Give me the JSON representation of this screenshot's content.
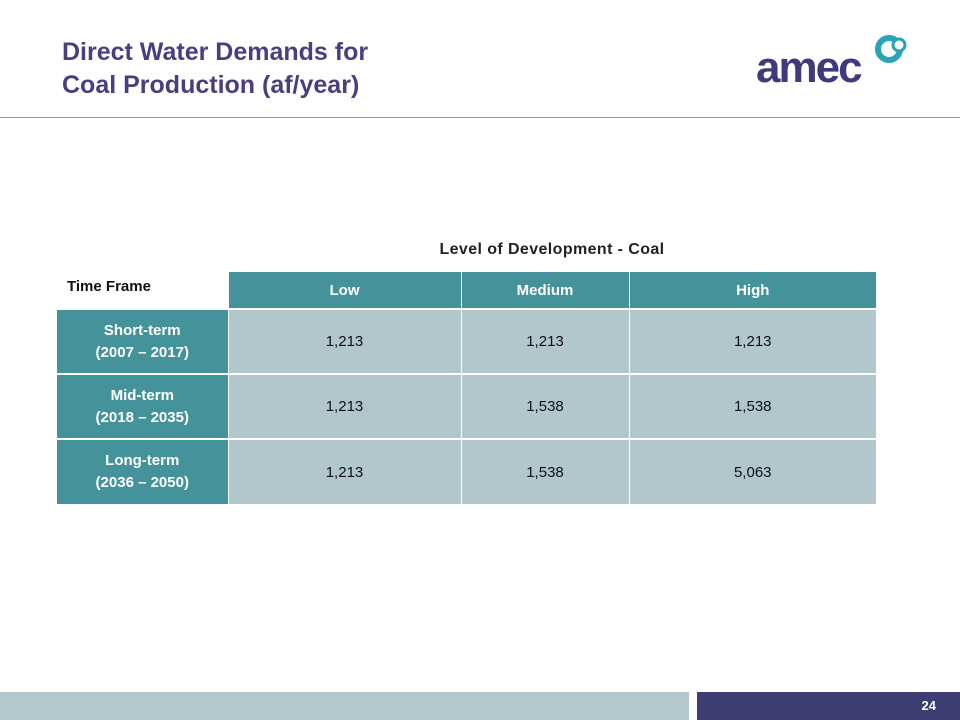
{
  "slide": {
    "title_line1": "Direct Water Demands for",
    "title_line2": "Coal Production (af/year)",
    "logo_text": "amec",
    "page_number": "24"
  },
  "table": {
    "caption": "Level of Development - Coal",
    "row_header_label": "Time Frame",
    "columns": [
      "Low",
      "Medium",
      "High"
    ],
    "rows": [
      {
        "label_line1": "Short-term",
        "label_line2": "(2007 – 2017)",
        "values": [
          "1,213",
          "1,213",
          "1,213"
        ]
      },
      {
        "label_line1": "Mid-term",
        "label_line2": "(2018 – 2035)",
        "values": [
          "1,213",
          "1,538",
          "1,538"
        ]
      },
      {
        "label_line1": "Long-term",
        "label_line2": "(2036 – 2050)",
        "values": [
          "1,213",
          "1,538",
          "5,063"
        ]
      }
    ]
  },
  "colors": {
    "title": "#4a3f7e",
    "header_teal": "#45939a",
    "cell_fill": "#b1c7cc",
    "footer_left": "#b3c8cd",
    "footer_right": "#3d3d73",
    "logo_text": "#3f3a7a",
    "logo_mark": "#2aa3b5"
  }
}
